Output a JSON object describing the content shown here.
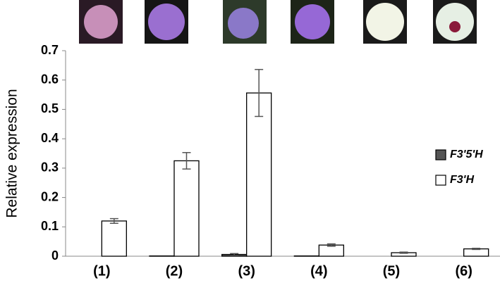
{
  "chart_data": {
    "type": "bar",
    "y_label": "Relative expression",
    "categories": [
      "(1)",
      "(2)",
      "(3)",
      "(4)",
      "(5)",
      "(6)"
    ],
    "series": [
      {
        "name": "F3'5'H",
        "color": "#555555",
        "values": [
          0,
          0.001,
          0.006,
          0.001,
          0,
          0
        ],
        "errors": [
          0,
          0,
          0.003,
          0,
          0,
          0
        ]
      },
      {
        "name": "F3'H",
        "color": "#ffffff",
        "values": [
          0.12,
          0.325,
          0.556,
          0.038,
          0.012,
          0.025
        ],
        "errors": [
          0.008,
          0.028,
          0.08,
          0.004,
          0.002,
          0.002
        ]
      }
    ],
    "ylim": [
      0,
      0.7
    ],
    "yticks": [
      0,
      0.1,
      0.2,
      0.3,
      0.4,
      0.5,
      0.6,
      0.7
    ],
    "grid": false,
    "legend": "right"
  }
}
